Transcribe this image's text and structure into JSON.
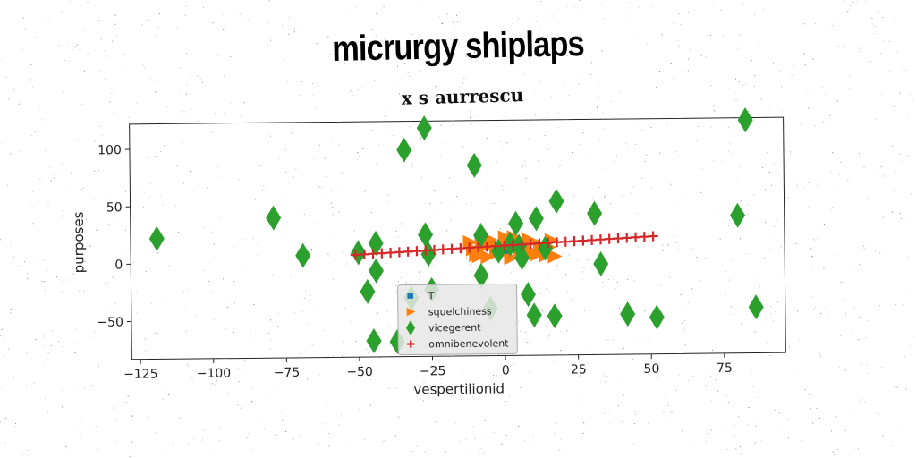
{
  "suptitle": "micrurgy shiplaps",
  "chart_data": {
    "type": "scatter",
    "title": "x s aurrescu",
    "xlabel": "vespertilionid",
    "ylabel": "purposes",
    "xlim": [
      -128,
      96
    ],
    "ylim": [
      -83,
      122
    ],
    "xticks": [
      -125,
      -100,
      -75,
      -50,
      -25,
      0,
      25,
      50,
      75
    ],
    "yticks": [
      -50,
      0,
      50,
      100
    ],
    "legend_position": "lower-center",
    "grid": false,
    "series": [
      {
        "name": "T",
        "marker": "square",
        "color": "#1f77b4",
        "x": [
          0,
          2,
          4
        ],
        "y": [
          9,
          10,
          11
        ]
      },
      {
        "name": "squelchiness",
        "marker": "triangle-right",
        "color": "#ff7f0e",
        "x": [
          -12,
          -10,
          -8,
          -6,
          -4,
          -2,
          0,
          2,
          4,
          6,
          8,
          10,
          12,
          14,
          16,
          -11,
          -7,
          -3,
          1,
          5,
          9,
          13,
          -9,
          -5,
          -1,
          3,
          7,
          11,
          15,
          17
        ],
        "y": [
          16,
          5,
          18,
          3,
          14,
          8,
          20,
          2,
          15,
          10,
          18,
          6,
          12,
          4,
          17,
          10,
          12,
          7,
          14,
          9,
          16,
          12,
          4,
          18,
          6,
          20,
          8,
          5,
          11,
          3
        ]
      },
      {
        "name": "vicegerent",
        "marker": "diamond",
        "color": "#2ca02c",
        "x": [
          -119,
          -79,
          -69,
          -50,
          -47,
          -44,
          -45,
          -50,
          -44,
          -37,
          -34,
          -32,
          -27,
          -27,
          -26,
          -25,
          -10,
          -8,
          -8,
          -5,
          4,
          5,
          8,
          10,
          11,
          14,
          18,
          17,
          31,
          33,
          42,
          52,
          80,
          83,
          86,
          -2,
          2,
          6
        ],
        "y": [
          22,
          39,
          6,
          8,
          -26,
          -8,
          -69,
          8,
          16,
          -70,
          97,
          -32,
          116,
          23,
          6,
          -25,
          83,
          22,
          -13,
          -42,
          32,
          12,
          -30,
          -48,
          36,
          10,
          51,
          -49,
          40,
          -4,
          -48,
          -51,
          37,
          120,
          -43,
          8,
          14,
          2
        ]
      },
      {
        "name": "omnibenevolent",
        "marker": "plus",
        "color": "#d62728",
        "x": [
          -51,
          -48,
          -45,
          -42,
          -39,
          -36,
          -33,
          -30,
          -27,
          -24,
          -21,
          -18,
          -15,
          -12,
          -9,
          -6,
          -3,
          0,
          3,
          6,
          9,
          12,
          15,
          18,
          21,
          24,
          27,
          30,
          33,
          36,
          39,
          42,
          45,
          48,
          51
        ],
        "y": [
          6.0,
          6.4,
          6.8,
          7.2,
          7.6,
          8.0,
          8.4,
          8.8,
          9.2,
          9.6,
          10.0,
          10.4,
          10.8,
          11.2,
          11.6,
          12.0,
          12.4,
          12.8,
          13.2,
          13.6,
          14.0,
          14.4,
          14.8,
          15.2,
          15.6,
          16.0,
          16.4,
          16.8,
          17.2,
          17.6,
          18.0,
          18.4,
          18.8,
          19.2,
          19.6
        ]
      }
    ]
  }
}
